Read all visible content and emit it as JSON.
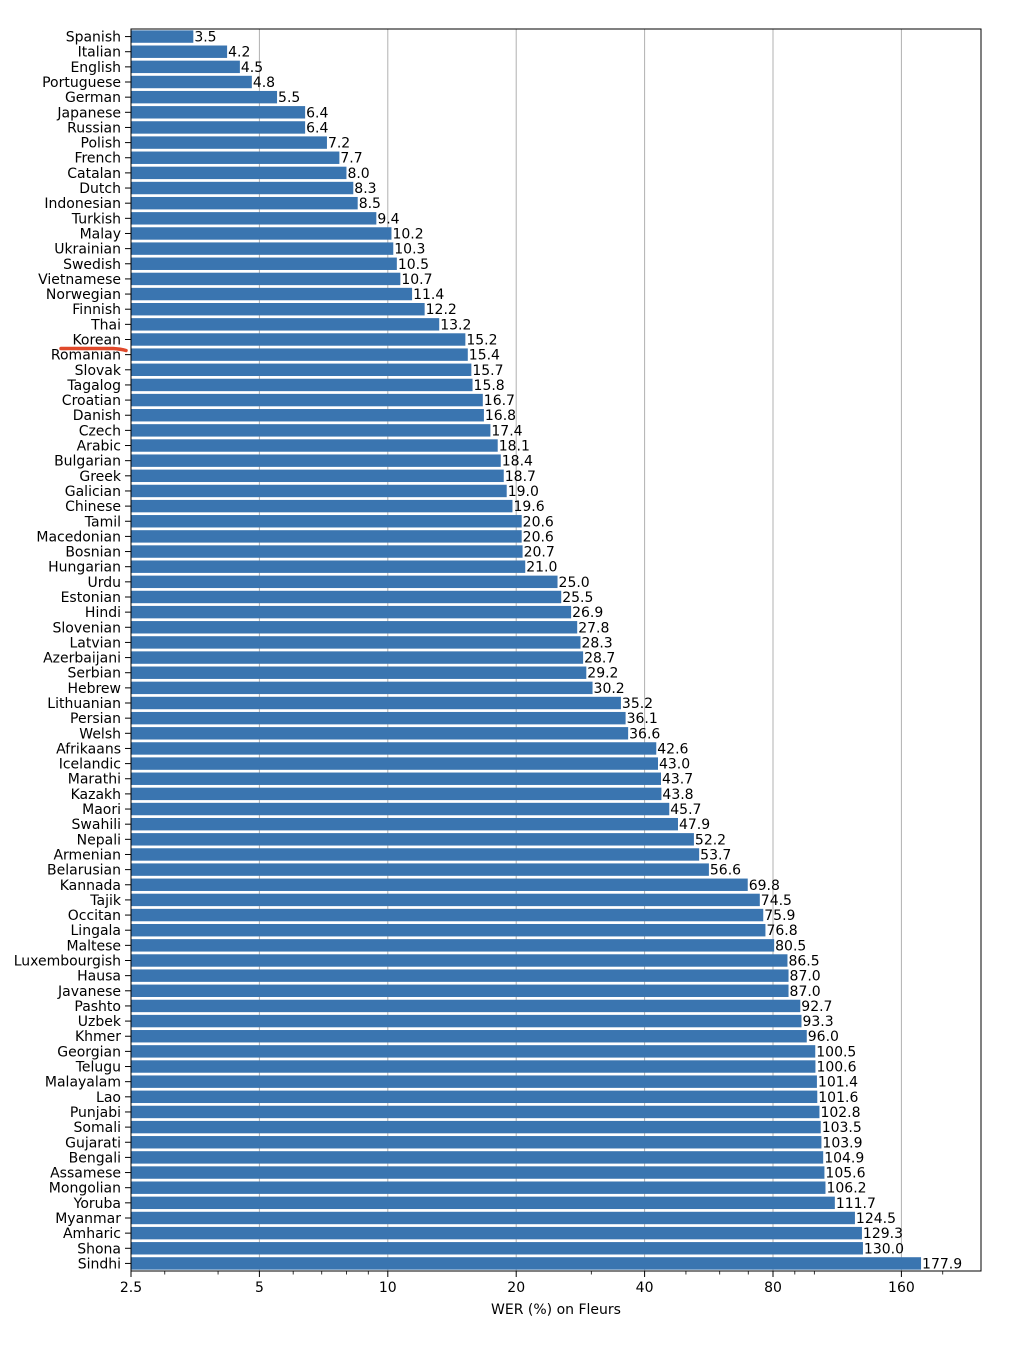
{
  "chart_data": {
    "type": "bar",
    "orientation": "horizontal",
    "title": "",
    "xlabel": "WER (%) on Fleurs",
    "ylabel": "",
    "xscale": "log2",
    "xlim": [
      2.5,
      200
    ],
    "xticks": [
      2.5,
      5,
      10,
      20,
      40,
      80,
      160
    ],
    "xtick_labels": [
      "2.5",
      "5",
      "10",
      "20",
      "40",
      "80",
      "160"
    ],
    "grid": "vertical",
    "bar_color": "#3a75b0",
    "highlight_color": "#e0492b",
    "highlighted_category": "Korean",
    "categories": [
      "Spanish",
      "Italian",
      "English",
      "Portuguese",
      "German",
      "Japanese",
      "Russian",
      "Polish",
      "French",
      "Catalan",
      "Dutch",
      "Indonesian",
      "Turkish",
      "Malay",
      "Ukrainian",
      "Swedish",
      "Vietnamese",
      "Norwegian",
      "Finnish",
      "Thai",
      "Korean",
      "Romanian",
      "Slovak",
      "Tagalog",
      "Croatian",
      "Danish",
      "Czech",
      "Arabic",
      "Bulgarian",
      "Greek",
      "Galician",
      "Chinese",
      "Tamil",
      "Macedonian",
      "Bosnian",
      "Hungarian",
      "Urdu",
      "Estonian",
      "Hindi",
      "Slovenian",
      "Latvian",
      "Azerbaijani",
      "Serbian",
      "Hebrew",
      "Lithuanian",
      "Persian",
      "Welsh",
      "Afrikaans",
      "Icelandic",
      "Marathi",
      "Kazakh",
      "Maori",
      "Swahili",
      "Nepali",
      "Armenian",
      "Belarusian",
      "Kannada",
      "Tajik",
      "Occitan",
      "Lingala",
      "Maltese",
      "Luxembourgish",
      "Hausa",
      "Javanese",
      "Pashto",
      "Uzbek",
      "Khmer",
      "Georgian",
      "Telugu",
      "Malayalam",
      "Lao",
      "Punjabi",
      "Somali",
      "Gujarati",
      "Bengali",
      "Assamese",
      "Mongolian",
      "Yoruba",
      "Myanmar",
      "Amharic",
      "Shona",
      "Sindhi"
    ],
    "values": [
      3.5,
      4.2,
      4.5,
      4.8,
      5.5,
      6.4,
      6.4,
      7.2,
      7.7,
      8.0,
      8.3,
      8.5,
      9.4,
      10.2,
      10.3,
      10.5,
      10.7,
      11.4,
      12.2,
      13.2,
      15.2,
      15.4,
      15.7,
      15.8,
      16.7,
      16.8,
      17.4,
      18.1,
      18.4,
      18.7,
      19.0,
      19.6,
      20.6,
      20.6,
      20.7,
      21.0,
      25.0,
      25.5,
      26.9,
      27.8,
      28.3,
      28.7,
      29.2,
      30.2,
      35.2,
      36.1,
      36.6,
      42.6,
      43.0,
      43.7,
      43.8,
      45.7,
      47.9,
      52.2,
      53.7,
      56.6,
      69.8,
      74.5,
      75.9,
      76.8,
      80.5,
      86.5,
      87.0,
      87.0,
      92.7,
      93.3,
      96.0,
      100.5,
      100.6,
      101.4,
      101.6,
      102.8,
      103.5,
      103.9,
      104.9,
      105.6,
      106.2,
      111.7,
      124.5,
      129.3,
      130.0,
      177.9
    ],
    "value_labels": [
      "3.5",
      "4.2",
      "4.5",
      "4.8",
      "5.5",
      "6.4",
      "6.4",
      "7.2",
      "7.7",
      "8.0",
      "8.3",
      "8.5",
      "9.4",
      "10.2",
      "10.3",
      "10.5",
      "10.7",
      "11.4",
      "12.2",
      "13.2",
      "15.2",
      "15.4",
      "15.7",
      "15.8",
      "16.7",
      "16.8",
      "17.4",
      "18.1",
      "18.4",
      "18.7",
      "19.0",
      "19.6",
      "20.6",
      "20.6",
      "20.7",
      "21.0",
      "25.0",
      "25.5",
      "26.9",
      "27.8",
      "28.3",
      "28.7",
      "29.2",
      "30.2",
      "35.2",
      "36.1",
      "36.6",
      "42.6",
      "43.0",
      "43.7",
      "43.8",
      "45.7",
      "47.9",
      "52.2",
      "53.7",
      "56.6",
      "69.8",
      "74.5",
      "75.9",
      "76.8",
      "80.5",
      "86.5",
      "87.0",
      "87.0",
      "92.7",
      "93.3",
      "96.0",
      "100.5",
      "100.6",
      "101.4",
      "101.6",
      "102.8",
      "103.5",
      "103.9",
      "104.9",
      "105.6",
      "106.2",
      "111.7",
      "124.5",
      "129.3",
      "130.0",
      "177.9"
    ]
  }
}
